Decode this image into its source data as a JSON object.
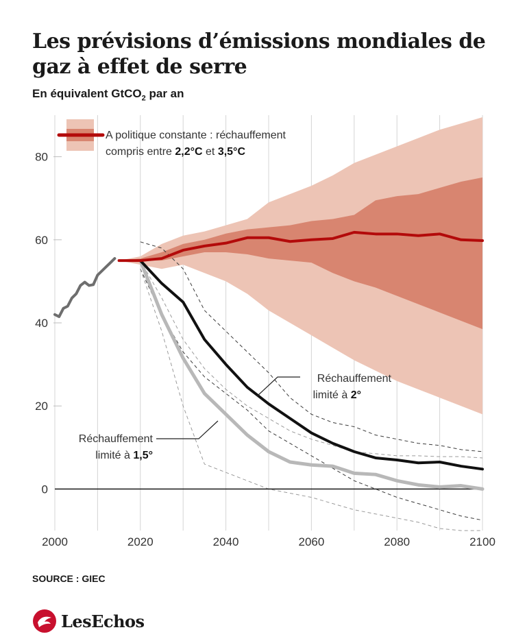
{
  "header": {
    "title": "Les prévisions d’émissions mondiales de gaz à effet de serre",
    "subtitle_prefix": "En équivalent GtCO",
    "subtitle_sub": "2",
    "subtitle_suffix": " par an"
  },
  "footer": {
    "source": "SOURCE : GIEC",
    "logo_text": "LesEchos"
  },
  "colors": {
    "current_policy": "#b30a0a",
    "band_outer": "#edc4b5",
    "band_inner": "#d88570",
    "pathway_2c": "#111111",
    "pathway_15c": "#b8b8b8",
    "historical": "#6e6e6e"
  },
  "chart_data": {
    "type": "line",
    "xlim": [
      2000,
      2100
    ],
    "ylim": [
      -10,
      90
    ],
    "x_ticks": [
      2000,
      2020,
      2040,
      2060,
      2080,
      2100
    ],
    "y_ticks": [
      0,
      20,
      40,
      60,
      80
    ],
    "x_tick_labels": [
      "2000",
      "2020",
      "2040",
      "2060",
      "2080",
      "2100"
    ],
    "y_tick_labels": [
      "0",
      "20",
      "40",
      "60",
      "80"
    ],
    "grid": "vertical",
    "series": [
      {
        "key": "historical",
        "x": [
          2000,
          2001,
          2002,
          2003,
          2004,
          2005,
          2006,
          2007,
          2008,
          2009,
          2010,
          2011,
          2012,
          2013,
          2014
        ],
        "values": [
          42,
          41.5,
          43.5,
          44,
          46,
          47,
          49,
          49.8,
          49,
          49.2,
          51.5,
          52.5,
          53.5,
          54.5,
          55.5
        ]
      },
      {
        "key": "current_policy",
        "name_line1": "A politique constante : réchauffement",
        "name_line2_prefix": "compris entre ",
        "name_line2_bold1": "2,2°C",
        "name_line2_mid": " et ",
        "name_line2_bold2": "3,5°C",
        "x": [
          2015,
          2020,
          2025,
          2030,
          2035,
          2040,
          2045,
          2050,
          2055,
          2060,
          2065,
          2070,
          2075,
          2080,
          2085,
          2090,
          2095,
          2100
        ],
        "values": [
          55,
          55,
          55.5,
          57.5,
          58.5,
          59.2,
          60.5,
          60.5,
          59.6,
          60,
          60.3,
          61.8,
          61.4,
          61.4,
          61,
          61.4,
          60,
          59.8
        ]
      },
      {
        "key": "pathway_2c",
        "name_line1": "Réchauffement",
        "name_line2_prefix": "limité à ",
        "name_line2_bold": "2°",
        "x": [
          2020,
          2025,
          2030,
          2035,
          2040,
          2045,
          2050,
          2055,
          2060,
          2065,
          2070,
          2075,
          2080,
          2085,
          2090,
          2095,
          2100
        ],
        "values": [
          55,
          49.5,
          45,
          36,
          30,
          24.5,
          20.5,
          17,
          13.5,
          11,
          9,
          7.5,
          7,
          6.3,
          6.5,
          5.5,
          4.8
        ]
      },
      {
        "key": "pathway_15c",
        "name_line1": "Réchauffement",
        "name_line2_prefix": "limité à ",
        "name_line2_bold": "1,5°",
        "x": [
          2020,
          2025,
          2030,
          2035,
          2040,
          2045,
          2050,
          2055,
          2060,
          2065,
          2070,
          2075,
          2080,
          2085,
          2090,
          2095,
          2100
        ],
        "values": [
          55,
          42,
          31.5,
          23,
          18,
          13,
          9,
          6.5,
          5.8,
          5.5,
          3.8,
          3.5,
          2,
          1,
          0.5,
          0.8,
          0
        ]
      }
    ],
    "bands": [
      {
        "key": "current_policy_outer",
        "x": [
          2015,
          2020,
          2025,
          2030,
          2035,
          2040,
          2045,
          2050,
          2055,
          2060,
          2065,
          2070,
          2075,
          2080,
          2085,
          2090,
          2095,
          2100
        ],
        "upper": [
          55,
          56,
          59,
          61,
          62,
          63.5,
          65,
          69,
          71,
          73,
          75.5,
          78.5,
          80.5,
          82.5,
          84.5,
          86.5,
          88,
          89.5
        ],
        "lower": [
          55,
          54,
          53,
          54,
          52,
          50,
          47,
          43,
          40,
          37,
          34,
          31,
          28.5,
          26,
          24,
          22,
          20,
          18
        ]
      },
      {
        "key": "current_policy_inner",
        "x": [
          2015,
          2020,
          2025,
          2030,
          2035,
          2040,
          2045,
          2050,
          2055,
          2060,
          2065,
          2070,
          2075,
          2080,
          2085,
          2090,
          2095,
          2100
        ],
        "upper": [
          55,
          55.5,
          57,
          59,
          60,
          61.5,
          62.5,
          63,
          63.5,
          64.5,
          65,
          66,
          69.5,
          70.5,
          71,
          72.5,
          74,
          75
        ],
        "lower": [
          55,
          55,
          55,
          56,
          57,
          57,
          56.5,
          55.5,
          55,
          54.5,
          52,
          50,
          48.5,
          46.5,
          44.5,
          42.5,
          40.5,
          38.5
        ]
      }
    ],
    "dashed_bounds": [
      {
        "key": "2c_upper",
        "x": [
          2020,
          2025,
          2030,
          2035,
          2040,
          2045,
          2050,
          2055,
          2060,
          2065,
          2070,
          2075,
          2080,
          2085,
          2090,
          2095,
          2100
        ],
        "values": [
          59.5,
          58,
          53,
          43,
          38,
          33,
          28,
          22,
          18,
          16,
          15,
          13,
          12,
          11,
          10.5,
          9.5,
          9
        ]
      },
      {
        "key": "2c_lower",
        "x": [
          2020,
          2025,
          2030,
          2035,
          2040,
          2045,
          2050,
          2055,
          2060,
          2065,
          2070,
          2075,
          2080,
          2085,
          2090,
          2095,
          2100
        ],
        "values": [
          53,
          42,
          33,
          27,
          23,
          19,
          14,
          11,
          8,
          5,
          2,
          0,
          -2,
          -3.5,
          -5,
          -6.5,
          -7.5
        ]
      },
      {
        "key": "15c_upper",
        "x": [
          2020,
          2025,
          2030,
          2035,
          2040,
          2045,
          2050,
          2055,
          2060,
          2065,
          2070,
          2075,
          2080,
          2085,
          2090,
          2095,
          2100
        ],
        "values": [
          55,
          46,
          36,
          29,
          24,
          20,
          17,
          14,
          12,
          10.5,
          9,
          8.5,
          8,
          8,
          7.8,
          7.8,
          7.5
        ]
      },
      {
        "key": "15c_lower",
        "x": [
          2020,
          2025,
          2030,
          2035,
          2040,
          2045,
          2050,
          2055,
          2060,
          2065,
          2070,
          2075,
          2080,
          2085,
          2090,
          2095,
          2100
        ],
        "values": [
          53,
          38,
          20,
          6,
          4,
          2,
          0,
          -1,
          -2,
          -3.5,
          -5,
          -6,
          -7,
          -8,
          -9.5,
          -10,
          -10
        ]
      }
    ]
  }
}
